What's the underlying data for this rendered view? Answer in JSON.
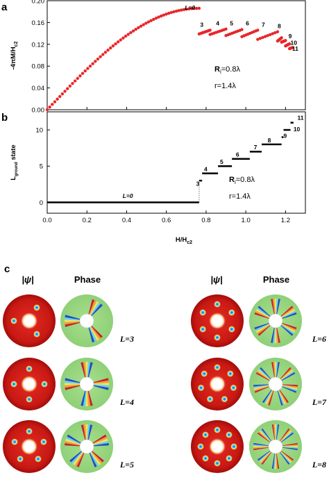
{
  "panels": {
    "a": {
      "letter": "a"
    },
    "b": {
      "letter": "b"
    },
    "c": {
      "letter": "c"
    }
  },
  "annotations": {
    "ri_text": "R",
    "ri_sub": "i",
    "ri_value": "=0.8λ",
    "r_text": "r=1.4λ",
    "l0_label": "L=0"
  },
  "chart_data": [
    {
      "type": "scatter",
      "panel": "a",
      "ylabel_main": "-4πM/H",
      "ylabel_sub": "c2",
      "xlim": [
        0.0,
        1.3
      ],
      "ylim": [
        0.0,
        0.2
      ],
      "yticks": [
        "0.00",
        "0.04",
        "0.08",
        "0.12",
        "0.16",
        "0.20"
      ],
      "color": "#e8262a",
      "segments": [
        {
          "L": "0",
          "x0": 0.0,
          "x1": 0.765,
          "y0": 0.0,
          "y1": 0.186,
          "shape": "concave"
        },
        {
          "L": "3",
          "x0": 0.765,
          "x1": 0.82,
          "y0": 0.139,
          "y1": 0.146,
          "shape": "linear"
        },
        {
          "L": "4",
          "x0": 0.82,
          "x1": 0.9,
          "y0": 0.138,
          "y1": 0.148,
          "shape": "linear"
        },
        {
          "L": "5",
          "x0": 0.9,
          "x1": 0.98,
          "y0": 0.136,
          "y1": 0.147,
          "shape": "linear"
        },
        {
          "L": "6",
          "x0": 0.98,
          "x1": 1.06,
          "y0": 0.134,
          "y1": 0.146,
          "shape": "linear"
        },
        {
          "L": "7",
          "x0": 1.06,
          "x1": 1.16,
          "y0": 0.129,
          "y1": 0.143,
          "shape": "linear"
        },
        {
          "L": "8",
          "x0": 1.16,
          "x1": 1.18,
          "y0": 0.126,
          "y1": 0.132,
          "shape": "linear"
        },
        {
          "L": "9",
          "x0": 1.18,
          "x1": 1.2,
          "y0": 0.124,
          "y1": 0.127,
          "shape": "linear"
        },
        {
          "L": "10",
          "x0": 1.2,
          "x1": 1.22,
          "y0": 0.117,
          "y1": 0.121,
          "shape": "linear"
        },
        {
          "L": "11",
          "x0": 1.22,
          "x1": 1.235,
          "y0": 0.112,
          "y1": 0.114,
          "shape": "linear"
        }
      ],
      "labels": [
        {
          "text": "3",
          "x": 0.77,
          "y": 0.152
        },
        {
          "text": "4",
          "x": 0.85,
          "y": 0.155
        },
        {
          "text": "5",
          "x": 0.92,
          "y": 0.155
        },
        {
          "text": "6",
          "x": 1.0,
          "y": 0.155
        },
        {
          "text": "7",
          "x": 1.08,
          "y": 0.152
        },
        {
          "text": "8",
          "x": 1.16,
          "y": 0.15
        },
        {
          "text": "9",
          "x": 1.215,
          "y": 0.131
        },
        {
          "text": "10",
          "x": 1.225,
          "y": 0.119
        },
        {
          "text": "11",
          "x": 1.233,
          "y": 0.108
        }
      ]
    },
    {
      "type": "line",
      "panel": "b",
      "xlabel_main": "H/H",
      "xlabel_sub": "c2",
      "ylabel_main": "L",
      "ylabel_sub": "ground",
      "ylabel_tail": " state",
      "xlim": [
        0.0,
        1.3
      ],
      "ylim": [
        -1.5,
        12.5
      ],
      "xticks": [
        "0.0",
        "0.2",
        "0.4",
        "0.6",
        "0.8",
        "1.0",
        "1.2"
      ],
      "yticks": [
        "0",
        "5",
        "10"
      ],
      "color": "#000000",
      "steps": [
        {
          "L": 0,
          "x0": 0.0,
          "x1": 0.765
        },
        {
          "L": 3,
          "x0": 0.765,
          "x1": 0.78
        },
        {
          "L": 4,
          "x0": 0.78,
          "x1": 0.86
        },
        {
          "L": 5,
          "x0": 0.86,
          "x1": 0.93
        },
        {
          "L": 6,
          "x0": 0.93,
          "x1": 1.02
        },
        {
          "L": 7,
          "x0": 1.02,
          "x1": 1.08
        },
        {
          "L": 8,
          "x0": 1.08,
          "x1": 1.18
        },
        {
          "L": 9,
          "x0": 1.18,
          "x1": 1.19
        },
        {
          "L": 10,
          "x0": 1.19,
          "x1": 1.225
        },
        {
          "L": 11,
          "x0": 1.225,
          "x1": 1.24
        }
      ],
      "labels": [
        {
          "text": "L=0",
          "x": 0.38,
          "y": 0.6
        },
        {
          "text": "3",
          "x": 0.75,
          "y": 2.3
        },
        {
          "text": "4",
          "x": 0.79,
          "y": 4.3
        },
        {
          "text": "5",
          "x": 0.87,
          "y": 5.3
        },
        {
          "text": "6",
          "x": 0.95,
          "y": 6.3
        },
        {
          "text": "7",
          "x": 1.04,
          "y": 7.3
        },
        {
          "text": "8",
          "x": 1.11,
          "y": 8.3
        },
        {
          "text": "9",
          "x": 1.19,
          "y": 8.9
        },
        {
          "text": "10",
          "x": 1.24,
          "y": 9.8
        },
        {
          "text": "11",
          "x": 1.26,
          "y": 11.4
        }
      ]
    }
  ],
  "panel_c": {
    "psi_header": "|ψ|",
    "phase_header": "Phase",
    "rows": [
      {
        "label": "L=3",
        "n": 3
      },
      {
        "label": "L=4",
        "n": 4
      },
      {
        "label": "L=5",
        "n": 5
      },
      {
        "label": "L=6",
        "n": 6
      },
      {
        "label": "L=7",
        "n": 7
      },
      {
        "label": "L=8",
        "n": 8
      }
    ]
  }
}
